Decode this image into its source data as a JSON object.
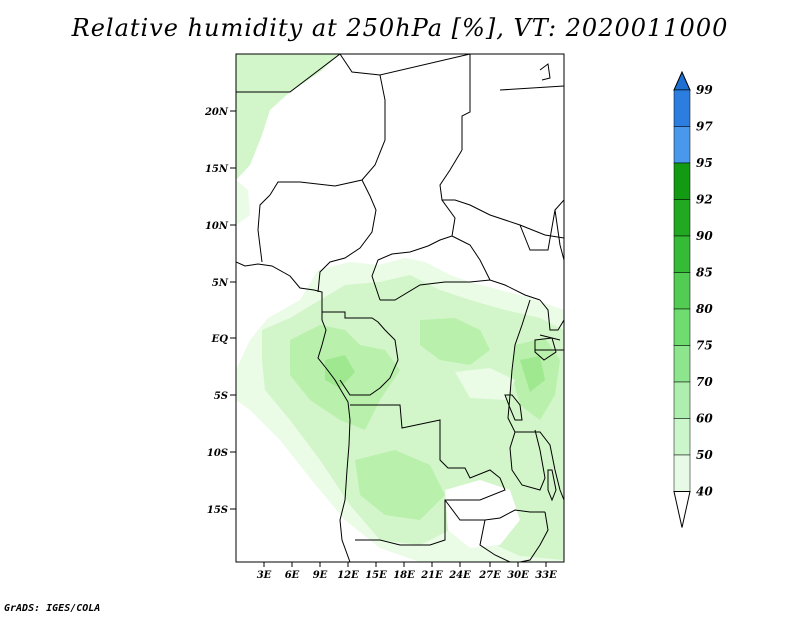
{
  "title": "Relative humidity at 250hPa [%], VT: 2020011000",
  "footer": "GrADS: IGES/COLA",
  "map": {
    "lat_labels": [
      "20N",
      "15N",
      "10N",
      "5N",
      "EQ",
      "5S",
      "10S",
      "15S"
    ],
    "lon_labels": [
      "3E",
      "6E",
      "9E",
      "12E",
      "15E",
      "18E",
      "21E",
      "24E",
      "27E",
      "30E",
      "33E"
    ],
    "field_colors": {
      "40": "#eafbe6",
      "50": "#d2f6c9",
      "60": "#b9f0ac",
      "70": "#9fe890"
    }
  },
  "colorbar": {
    "levels": [
      "99",
      "97",
      "95",
      "92",
      "90",
      "85",
      "80",
      "75",
      "70",
      "60",
      "50",
      "40"
    ],
    "colors": [
      "#1d6fd1",
      "#2b7ee0",
      "#4a98ec",
      "#129b12",
      "#22a922",
      "#36bb36",
      "#52cc52",
      "#6edc6e",
      "#8de58d",
      "#aeeeae",
      "#cbf5cb",
      "#e6fae6",
      "#ffffff"
    ]
  }
}
